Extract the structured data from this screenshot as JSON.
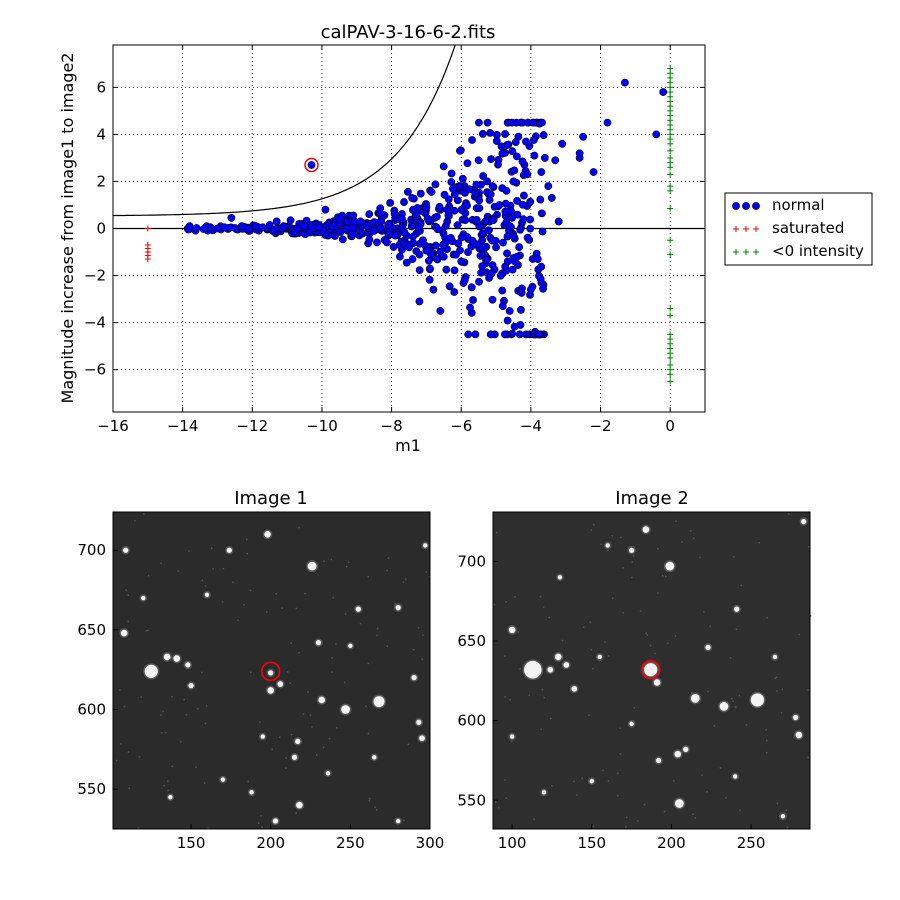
{
  "chart_data": [
    {
      "type": "scatter",
      "title": "calPAV-3-16-6-2.fits",
      "xlabel": "m1",
      "ylabel": "Magnitude increase from image1 to image2",
      "xlim": [
        -16,
        1
      ],
      "ylim": [
        -7.8,
        7.8
      ],
      "xticks": [
        -16,
        -14,
        -12,
        -10,
        -8,
        -6,
        -4,
        -2,
        0
      ],
      "xtick_labels": [
        "−16",
        "−14",
        "−12",
        "−10",
        "−8",
        "−6",
        "−4",
        "−2",
        "0"
      ],
      "yticks": [
        -6,
        -4,
        -2,
        0,
        2,
        4,
        6
      ],
      "ytick_labels": [
        "−6",
        "−4",
        "−2",
        "0",
        "2",
        "4",
        "6"
      ],
      "grid": true,
      "legend_position": "right-outside",
      "highlighted_point": {
        "x": -10.3,
        "y": 2.7
      },
      "threshold_curve": {
        "description": "limit curve",
        "start": {
          "x": -16,
          "y": 0.55
        },
        "end_x": -2.7
      },
      "series": [
        {
          "name": "normal",
          "marker": "circle",
          "color": "#0000ff",
          "points": [
            [
              -13.8,
              0.1
            ],
            [
              -13.6,
              0.02
            ],
            [
              -13.4,
              -0.02
            ],
            [
              -13.2,
              0.05
            ],
            [
              -13.0,
              0.0
            ],
            [
              -12.8,
              0.05
            ],
            [
              -12.6,
              0.45
            ],
            [
              -12.5,
              0.02
            ],
            [
              -12.3,
              0.1
            ],
            [
              -12.1,
              -0.03
            ],
            [
              -11.9,
              0.1
            ],
            [
              -11.7,
              0.05
            ],
            [
              -11.5,
              0.15
            ],
            [
              -11.3,
              0.3
            ],
            [
              -11.1,
              0.1
            ],
            [
              -10.9,
              0.35
            ],
            [
              -10.7,
              0.0
            ],
            [
              -10.5,
              0.1
            ],
            [
              -10.3,
              2.7
            ],
            [
              -10.1,
              0.05
            ],
            [
              -9.9,
              0.8
            ],
            [
              -9.7,
              0.1
            ],
            [
              -9.5,
              0.2
            ],
            [
              -9.3,
              0.0
            ],
            [
              -9.1,
              0.55
            ],
            [
              -8.9,
              0.3
            ],
            [
              -8.7,
              0.1
            ],
            [
              -8.5,
              -0.1
            ],
            [
              -8.3,
              0.3
            ],
            [
              -8.1,
              0.15
            ],
            [
              -7.9,
              -0.3
            ],
            [
              -7.7,
              0.4
            ],
            [
              -7.5,
              -0.8
            ],
            [
              -7.4,
              -1.3
            ],
            [
              -7.3,
              0.6
            ],
            [
              -7.2,
              -3.1
            ],
            [
              -7.1,
              -0.5
            ],
            [
              -7.0,
              0.9
            ],
            [
              -6.9,
              -1.7
            ],
            [
              -6.8,
              -2.6
            ],
            [
              -6.7,
              0.5
            ],
            [
              -6.6,
              -3.5
            ],
            [
              -6.5,
              -1.2
            ],
            [
              -6.4,
              0.8
            ],
            [
              -6.3,
              -0.4
            ],
            [
              -6.2,
              -2.7
            ],
            [
              -6.1,
              1.2
            ],
            [
              -6.0,
              -1.4
            ],
            [
              -5.9,
              -2.2
            ],
            [
              -5.8,
              -4.5
            ],
            [
              -5.7,
              -2.5
            ],
            [
              -5.6,
              1.5
            ],
            [
              -5.5,
              2.9
            ],
            [
              -5.4,
              -1.6
            ],
            [
              -5.3,
              0.3
            ],
            [
              -5.2,
              -2.1
            ],
            [
              -5.1,
              1.8
            ],
            [
              -5.0,
              -0.8
            ],
            [
              -4.9,
              1.0
            ],
            [
              -4.8,
              -0.6
            ],
            [
              -4.7,
              1.6
            ],
            [
              -4.6,
              0.1
            ],
            [
              -4.5,
              2.0
            ],
            [
              -4.4,
              -1.2
            ],
            [
              -4.3,
              -4.1
            ],
            [
              -4.2,
              1.4
            ],
            [
              -4.1,
              2.3
            ],
            [
              -4.0,
              -2.6
            ],
            [
              -3.9,
              3.1
            ],
            [
              -3.8,
              -1.3
            ],
            [
              -3.7,
              2.4
            ],
            [
              -3.6,
              3.0
            ],
            [
              -3.5,
              1.8
            ],
            [
              -3.4,
              1.3
            ],
            [
              -3.3,
              2.9
            ],
            [
              -3.2,
              0.3
            ],
            [
              -3.1,
              3.6
            ],
            [
              -2.6,
              3.0
            ],
            [
              -2.6,
              3.2
            ],
            [
              -2.5,
              3.9
            ],
            [
              -2.2,
              2.4
            ],
            [
              -1.8,
              4.5
            ],
            [
              -1.3,
              6.2
            ],
            [
              -0.4,
              4.0
            ],
            [
              -0.2,
              5.8
            ]
          ]
        },
        {
          "name": "saturated",
          "marker": "plus",
          "color": "#ff0000",
          "points": [
            [
              -15.0,
              0.0
            ],
            [
              -15.0,
              -0.7
            ],
            [
              -15.0,
              -0.85
            ],
            [
              -15.0,
              -1.0
            ],
            [
              -15.0,
              -1.15
            ],
            [
              -15.0,
              -1.3
            ]
          ]
        },
        {
          "name": "<0 intensity",
          "marker": "plus",
          "color": "#008000",
          "points": [
            [
              0,
              6.8
            ],
            [
              0,
              6.6
            ],
            [
              0,
              6.4
            ],
            [
              0,
              6.2
            ],
            [
              0,
              6.0
            ],
            [
              0,
              5.8
            ],
            [
              0,
              5.6
            ],
            [
              0,
              5.4
            ],
            [
              0,
              5.2
            ],
            [
              0,
              5.0
            ],
            [
              0,
              4.8
            ],
            [
              0,
              4.6
            ],
            [
              0,
              4.4
            ],
            [
              0,
              4.2
            ],
            [
              0,
              4.0
            ],
            [
              0,
              3.8
            ],
            [
              0,
              3.6
            ],
            [
              0,
              3.3
            ],
            [
              0,
              3.0
            ],
            [
              0,
              2.8
            ],
            [
              0,
              2.6
            ],
            [
              0,
              2.3
            ],
            [
              0,
              1.8
            ],
            [
              0,
              1.6
            ],
            [
              0,
              0.85
            ],
            [
              0,
              -0.5
            ],
            [
              0,
              -1.1
            ],
            [
              0,
              -3.4
            ],
            [
              0,
              -3.7
            ],
            [
              0,
              -4.5
            ],
            [
              0,
              -4.7
            ],
            [
              0,
              -4.9
            ],
            [
              0,
              -5.1
            ],
            [
              0,
              -5.3
            ],
            [
              0,
              -5.5
            ],
            [
              0,
              -5.8
            ],
            [
              0,
              -6.0
            ],
            [
              0,
              -6.2
            ],
            [
              0,
              -6.5
            ]
          ]
        }
      ]
    },
    {
      "type": "image",
      "title": "Image 1",
      "xlim": [
        101,
        300
      ],
      "ylim": [
        525,
        724
      ],
      "xticks": [
        150,
        200,
        250,
        300
      ],
      "yticks": [
        550,
        600,
        650,
        700
      ],
      "marker_circle": {
        "x": 200,
        "y": 624
      },
      "stars": [
        [
          125,
          624,
          3
        ],
        [
          141,
          632,
          1.5
        ],
        [
          135,
          633,
          1.5
        ],
        [
          148,
          628,
          1.2
        ],
        [
          108,
          648,
          1.5
        ],
        [
          109,
          700,
          1.2
        ],
        [
          174,
          700,
          1.2
        ],
        [
          198,
          710,
          1.5
        ],
        [
          226,
          690,
          2
        ],
        [
          232,
          606,
          1.5
        ],
        [
          247,
          600,
          2
        ],
        [
          268,
          605,
          2.5
        ],
        [
          200,
          612,
          1.5
        ],
        [
          200,
          623,
          1.2
        ],
        [
          206,
          616,
          1.3
        ],
        [
          218,
          540,
          1.5
        ],
        [
          215,
          570,
          1.2
        ],
        [
          217,
          580,
          1.2
        ],
        [
          230,
          642,
          1.2
        ],
        [
          255,
          663,
          1.2
        ],
        [
          280,
          664,
          1.2
        ],
        [
          290,
          620,
          1.2
        ],
        [
          295,
          582,
          1.3
        ],
        [
          293,
          592,
          1.2
        ],
        [
          150,
          615,
          1.2
        ],
        [
          160,
          672,
          1.0
        ],
        [
          188,
          548,
          1.0
        ],
        [
          265,
          570,
          1.0
        ],
        [
          203,
          530,
          1.2
        ],
        [
          137,
          545,
          1.0
        ],
        [
          236,
          560,
          1.0
        ],
        [
          195,
          583,
          1.0
        ],
        [
          170,
          556,
          1.0
        ],
        [
          120,
          670,
          1.0
        ],
        [
          280,
          530,
          1.0
        ],
        [
          250,
          640,
          1.0
        ],
        [
          297,
          703,
          1.0
        ]
      ]
    },
    {
      "type": "image",
      "title": "Image 2",
      "xlim": [
        88,
        287
      ],
      "ylim": [
        532,
        731
      ],
      "xticks": [
        100,
        150,
        200,
        250
      ],
      "yticks": [
        550,
        600,
        650,
        700
      ],
      "marker_circle": {
        "x": 187,
        "y": 632
      },
      "stars": [
        [
          113,
          632,
          4
        ],
        [
          187,
          632,
          3
        ],
        [
          191,
          624,
          1.5
        ],
        [
          100,
          657,
          1.5
        ],
        [
          129,
          640,
          1.5
        ],
        [
          134,
          635,
          1.3
        ],
        [
          124,
          632,
          1.3
        ],
        [
          139,
          620,
          1.3
        ],
        [
          175,
          707,
          1.2
        ],
        [
          184,
          720,
          1.5
        ],
        [
          199,
          697,
          2
        ],
        [
          215,
          614,
          2
        ],
        [
          233,
          609,
          2
        ],
        [
          254,
          613,
          3
        ],
        [
          205,
          548,
          2
        ],
        [
          204,
          579,
          1.5
        ],
        [
          209,
          582,
          1.2
        ],
        [
          223,
          646,
          1.2
        ],
        [
          241,
          670,
          1.2
        ],
        [
          280,
          591,
          1.5
        ],
        [
          278,
          602,
          1.2
        ],
        [
          283,
          725,
          1.2
        ],
        [
          150,
          562,
          1.0
        ],
        [
          192,
          575,
          1.2
        ],
        [
          175,
          598,
          1.0
        ],
        [
          130,
          690,
          1.0
        ],
        [
          160,
          710,
          1.0
        ],
        [
          265,
          640,
          1.0
        ],
        [
          120,
          555,
          1.0
        ],
        [
          240,
          565,
          1.0
        ],
        [
          100,
          590,
          1.0
        ],
        [
          155,
          640,
          1.0
        ],
        [
          270,
          540,
          1.0
        ]
      ]
    }
  ]
}
